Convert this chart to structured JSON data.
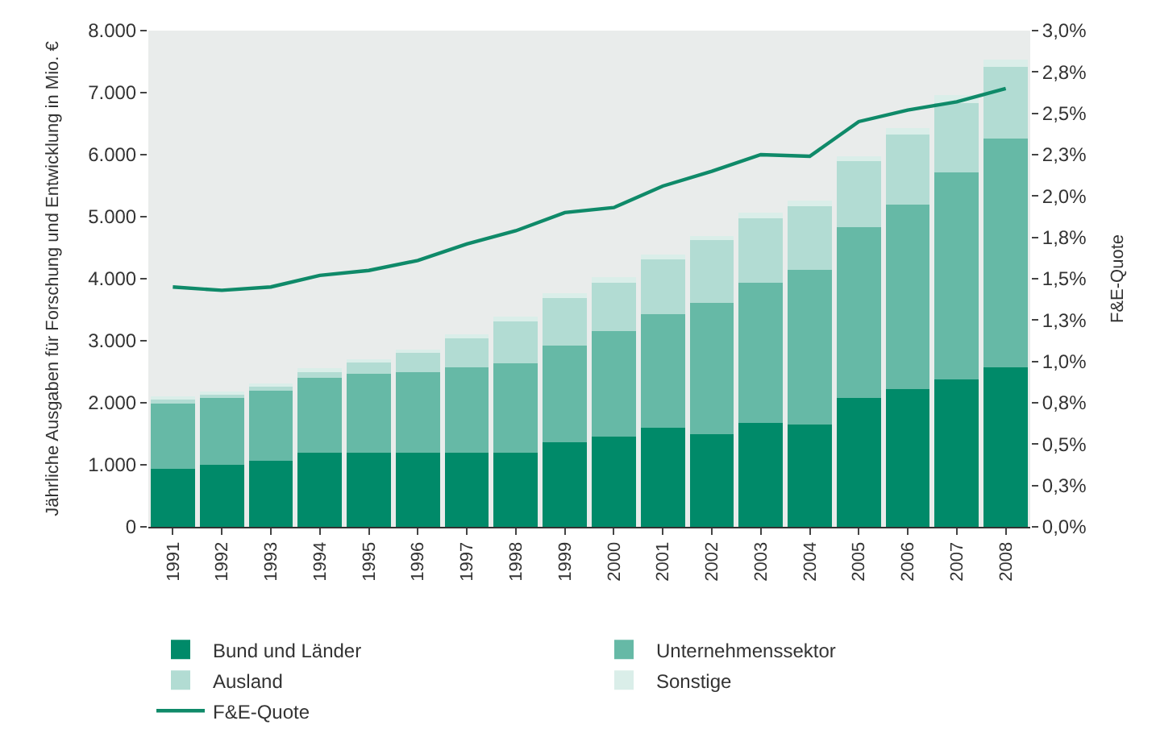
{
  "chart_data": {
    "type": "bar",
    "stacked": true,
    "categories": [
      "1991",
      "1992",
      "1993",
      "1994",
      "1995",
      "1996",
      "1997",
      "1998",
      "1999",
      "2000",
      "2001",
      "2002",
      "2003",
      "2004",
      "2005",
      "2006",
      "2007",
      "2008"
    ],
    "ylabel": "Jährliche Ausgaben für Forschung und Entwicklung in Mio. €",
    "y2label": "F&E-Quote",
    "series": [
      {
        "name": "Bund und Länder",
        "color": "#008a69",
        "values": [
          940,
          1000,
          1060,
          1190,
          1190,
          1190,
          1190,
          1190,
          1370,
          1450,
          1600,
          1490,
          1670,
          1650,
          2080,
          2220,
          2380,
          2570
        ]
      },
      {
        "name": "Unternehmenssektor",
        "color": "#66b9a6",
        "values": [
          1050,
          1080,
          1140,
          1210,
          1280,
          1300,
          1380,
          1450,
          1550,
          1710,
          1830,
          2120,
          2270,
          2490,
          2750,
          2980,
          3330,
          3690
        ]
      },
      {
        "name": "Ausland",
        "color": "#b2dcd3",
        "values": [
          80,
          75,
          75,
          100,
          190,
          330,
          490,
          670,
          770,
          780,
          880,
          1020,
          1030,
          1030,
          1060,
          1130,
          1120,
          1160
        ]
      },
      {
        "name": "Sonstige",
        "color": "#daeee9",
        "values": [
          25,
          20,
          30,
          60,
          45,
          40,
          50,
          75,
          75,
          90,
          75,
          60,
          90,
          90,
          80,
          100,
          135,
          110
        ]
      },
      {
        "name": "F&E-Quote",
        "type": "line",
        "axis": "y2",
        "color": "#0f8a69",
        "values": [
          1.45,
          1.43,
          1.45,
          1.52,
          1.55,
          1.61,
          1.71,
          1.79,
          1.9,
          1.93,
          2.06,
          2.15,
          2.25,
          2.24,
          2.45,
          2.52,
          2.57,
          2.65
        ]
      }
    ],
    "ylim": [
      0,
      8000
    ],
    "yticks": [
      {
        "value": 0,
        "label": "0"
      },
      {
        "value": 1000,
        "label": "1.000"
      },
      {
        "value": 2000,
        "label": "2.000"
      },
      {
        "value": 3000,
        "label": "3.000"
      },
      {
        "value": 4000,
        "label": "4.000"
      },
      {
        "value": 5000,
        "label": "5.000"
      },
      {
        "value": 6000,
        "label": "6.000"
      },
      {
        "value": 7000,
        "label": "7.000"
      },
      {
        "value": 8000,
        "label": "8.000"
      }
    ],
    "y2lim": [
      0,
      3
    ],
    "y2ticks": [
      {
        "value": 0,
        "label": "0,0%"
      },
      {
        "value": 0.25,
        "label": "0,3%"
      },
      {
        "value": 0.5,
        "label": "0,5%"
      },
      {
        "value": 0.75,
        "label": "0,8%"
      },
      {
        "value": 1,
        "label": "1,0%"
      },
      {
        "value": 1.25,
        "label": "1,3%"
      },
      {
        "value": 1.5,
        "label": "1,5%"
      },
      {
        "value": 1.75,
        "label": "1,8%"
      },
      {
        "value": 2,
        "label": "2,0%"
      },
      {
        "value": 2.25,
        "label": "2,3%"
      },
      {
        "value": 2.5,
        "label": "2,5%"
      },
      {
        "value": 2.75,
        "label": "2,8%"
      },
      {
        "value": 3,
        "label": "3,0%"
      }
    ],
    "grid": false,
    "legend": "bottom"
  }
}
